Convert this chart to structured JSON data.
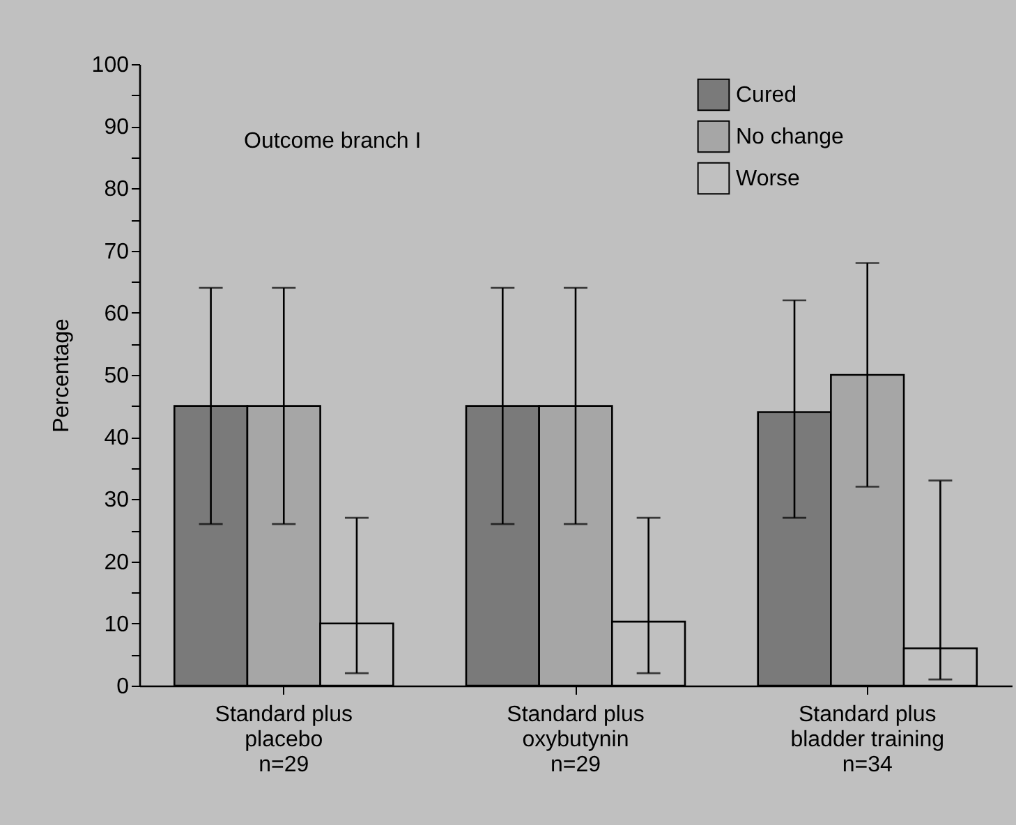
{
  "chart_data": {
    "type": "bar",
    "categories": [
      "Standard plus\nplacebo\nn=29",
      "Standard plus\noxybutynin\nn=29",
      "Standard plus\nbladder training\nn=34"
    ],
    "series": [
      {
        "name": "Cured",
        "color": "#7a7a7a",
        "values": [
          45,
          45,
          44
        ],
        "errors": [
          [
            26,
            64
          ],
          [
            26,
            64
          ],
          [
            27,
            62
          ]
        ]
      },
      {
        "name": "No change",
        "color": "#a6a6a6",
        "values": [
          45,
          45,
          50
        ],
        "errors": [
          [
            26,
            64
          ],
          [
            26,
            64
          ],
          [
            32,
            68
          ]
        ]
      },
      {
        "name": "Worse",
        "color": "#c0c0c0",
        "values": [
          10,
          10.3,
          6
        ],
        "errors": [
          [
            2,
            27
          ],
          [
            2,
            27
          ],
          [
            1,
            33
          ]
        ]
      }
    ],
    "ylabel": "Percentage",
    "ylim": [
      0,
      100
    ],
    "yticks": [
      0,
      {
        "value": 5,
        "label": null
      },
      10,
      {
        "value": 15,
        "label": null
      },
      20,
      {
        "value": 25,
        "label": null
      },
      30,
      {
        "value": 35,
        "label": null
      },
      40,
      {
        "value": 45,
        "label": null
      },
      50,
      {
        "value": 55,
        "label": null
      },
      60,
      {
        "value": 65,
        "label": null
      },
      70,
      {
        "value": 75,
        "label": null
      },
      80,
      {
        "value": 85,
        "label": null
      },
      90,
      {
        "value": 95,
        "label": null
      },
      100
    ],
    "annotations": [
      "Outcome branch I"
    ],
    "legend": "top right",
    "grid": false
  }
}
